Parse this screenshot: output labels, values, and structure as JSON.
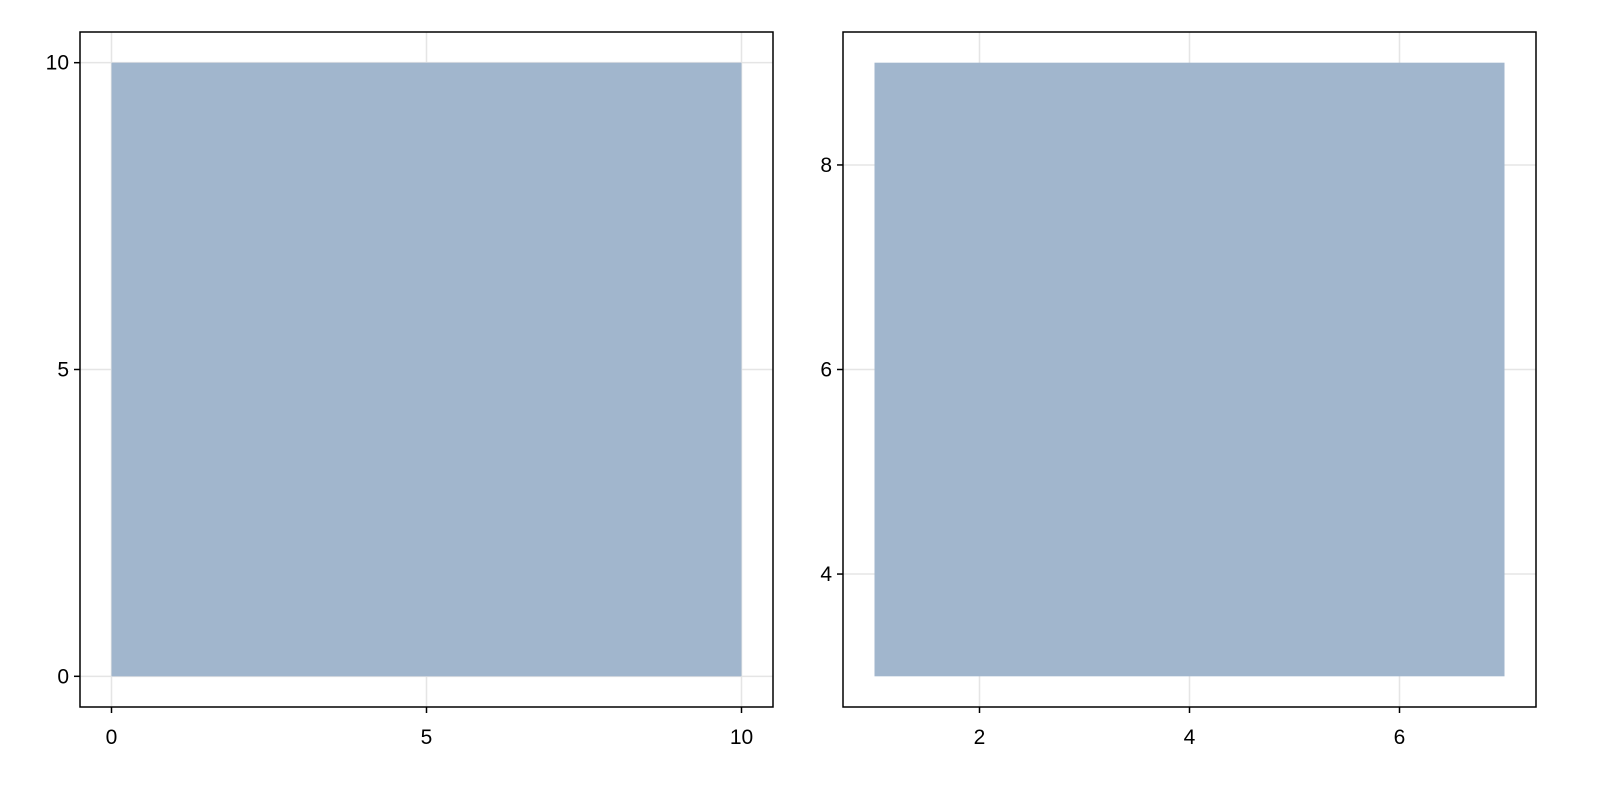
{
  "chart_data": [
    {
      "type": "area",
      "title": "",
      "xlabel": "",
      "ylabel": "",
      "xlim": [
        -0.5,
        10.5
      ],
      "ylim": [
        -0.5,
        10.5
      ],
      "xticks": [
        0,
        5,
        10
      ],
      "yticks": [
        0,
        5,
        10
      ],
      "grid": true,
      "rect": {
        "x": [
          0,
          10
        ],
        "y": [
          0,
          10
        ]
      },
      "fill_color": "#a1b6cd"
    },
    {
      "type": "area",
      "title": "",
      "xlabel": "",
      "ylabel": "",
      "xlim": [
        0.7,
        7.3
      ],
      "ylim": [
        2.7,
        9.3
      ],
      "xticks": [
        2,
        4,
        6
      ],
      "yticks": [
        4,
        6,
        8
      ],
      "grid": true,
      "rect": {
        "x": [
          1,
          7
        ],
        "y": [
          3,
          9
        ]
      },
      "fill_color": "#a1b6cd"
    }
  ]
}
